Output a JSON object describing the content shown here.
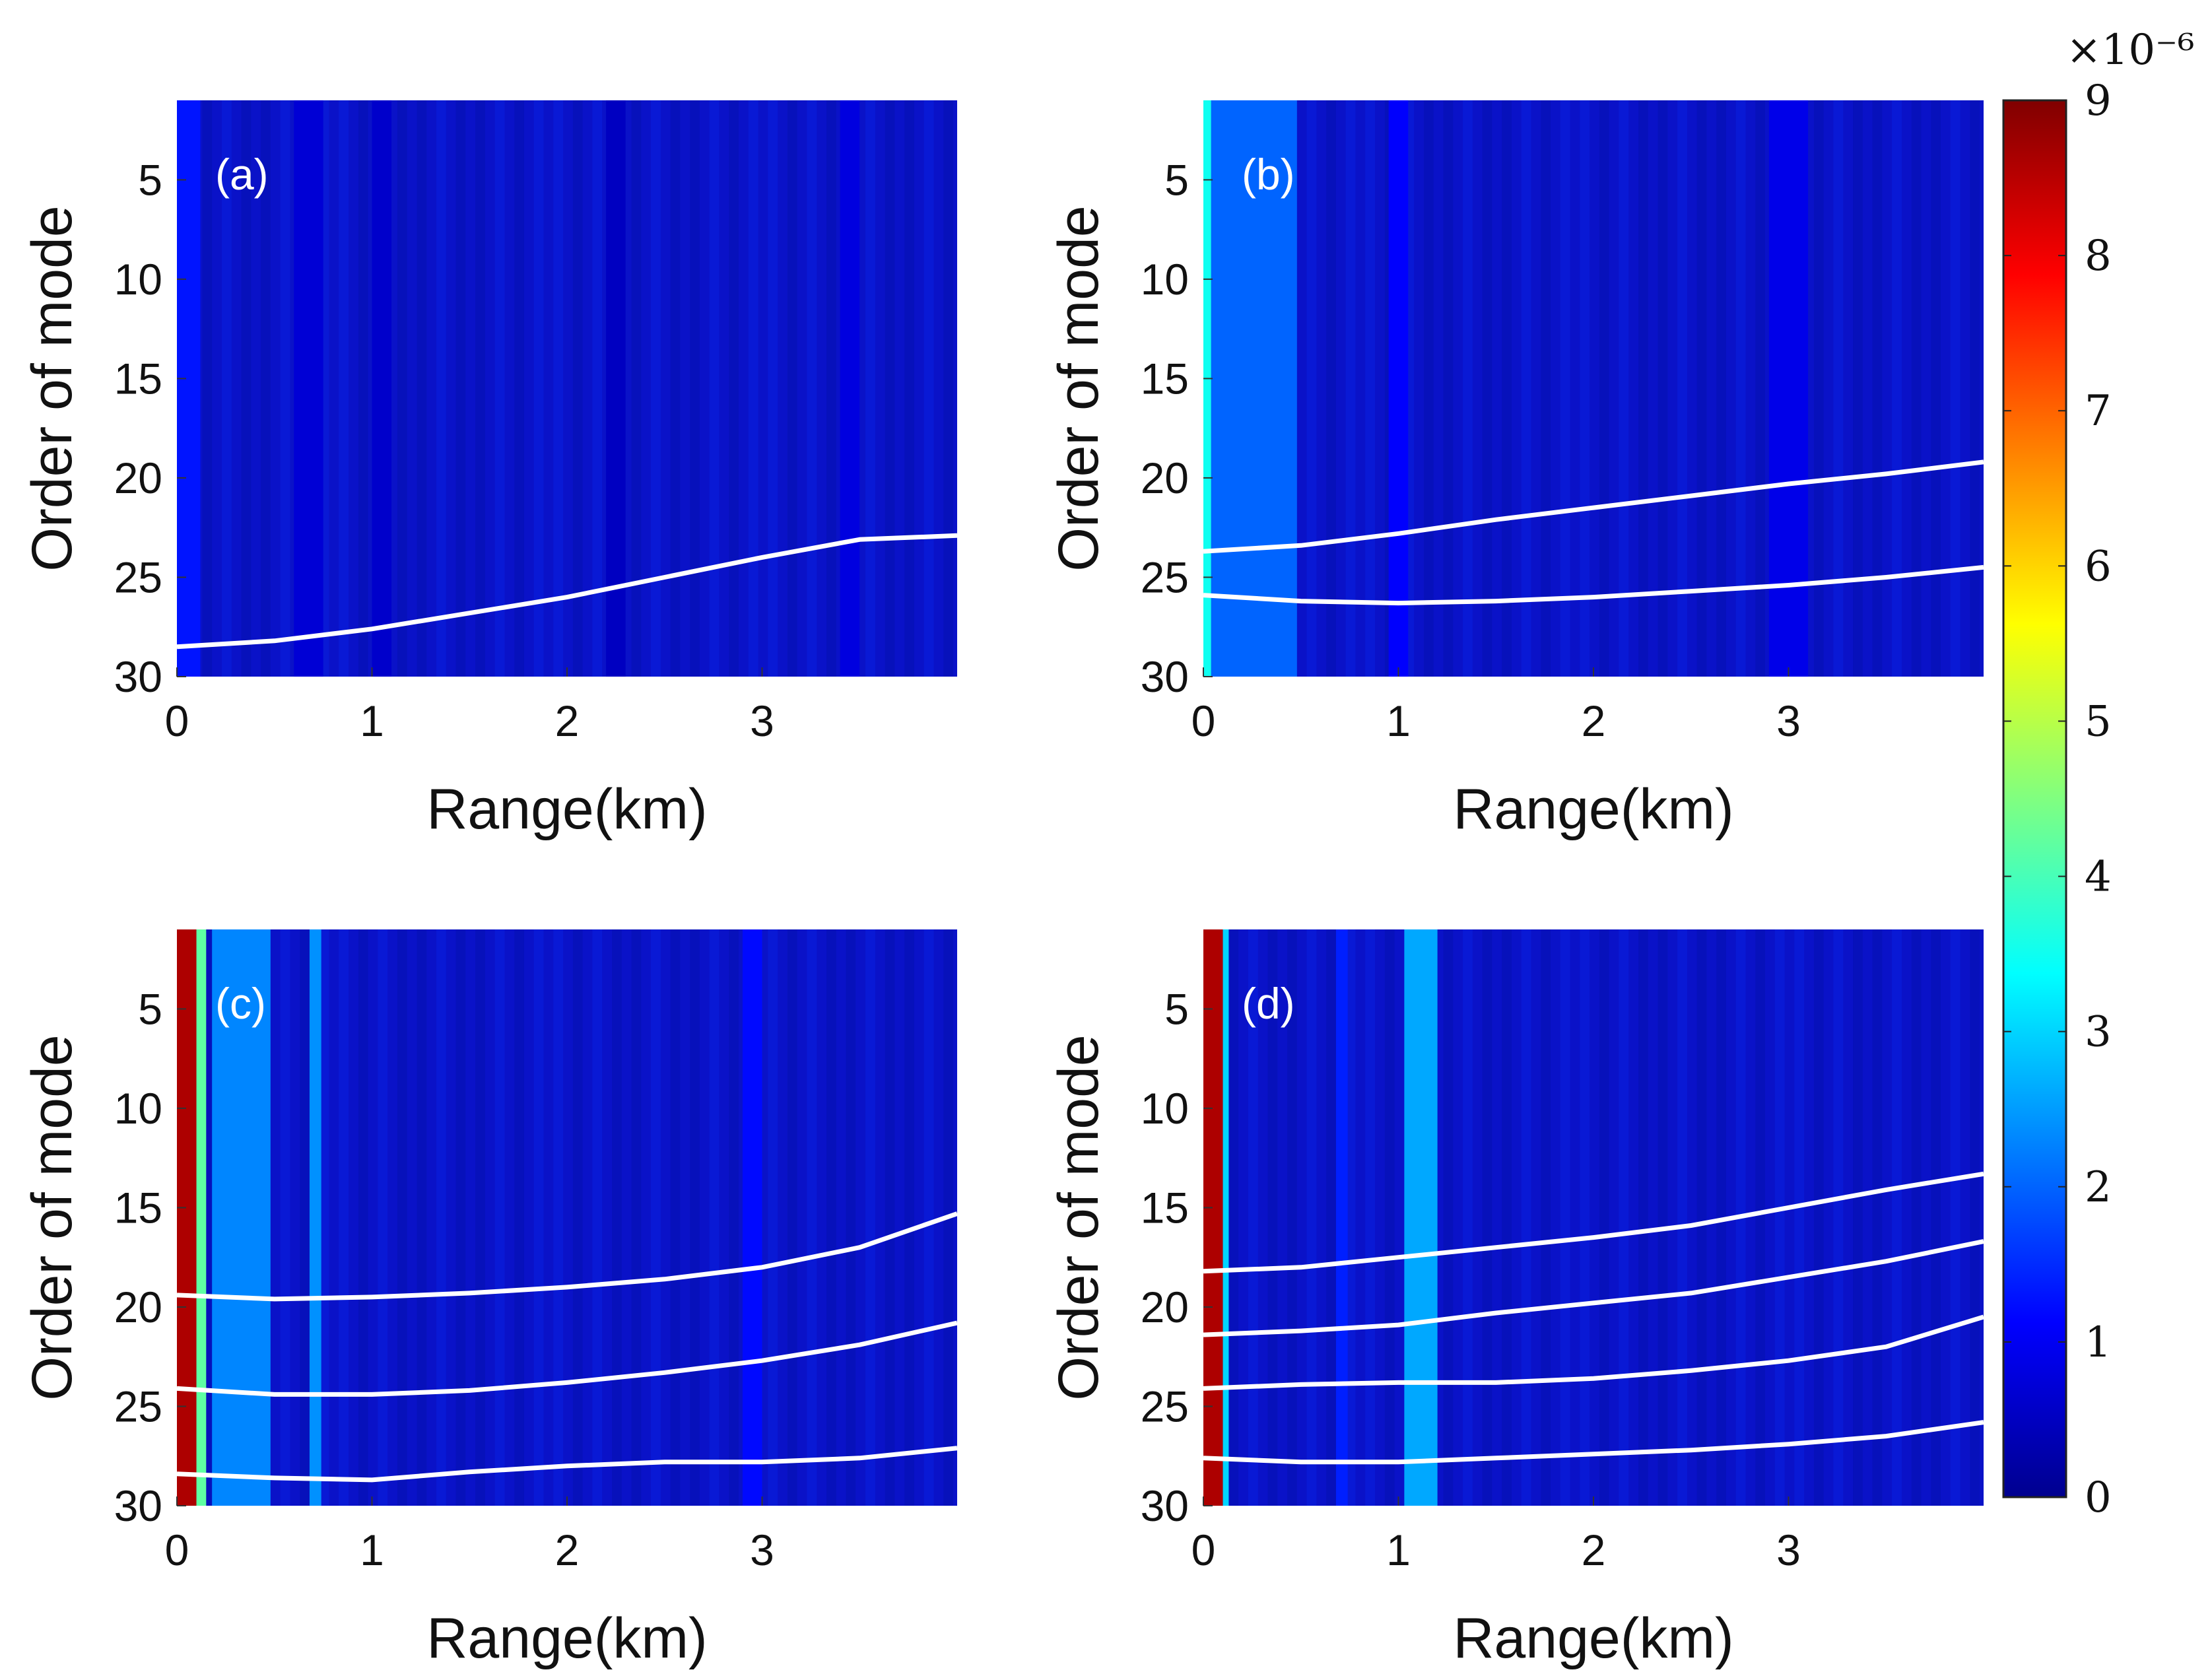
{
  "chart_data": {
    "type": "heatmap",
    "shared": {
      "xlabel": "Range(km)",
      "ylabel": "Order of mode",
      "xlim": [
        0,
        4
      ],
      "ylim": [
        1,
        30
      ],
      "xticks": [
        "0",
        "1",
        "2",
        "3"
      ],
      "yticks": [
        "5",
        "10",
        "15",
        "20",
        "25",
        "30"
      ],
      "line_color": "#ffffff"
    },
    "colorbar": {
      "min": 0,
      "max": 9,
      "ticks": [
        "0",
        "1",
        "2",
        "3",
        "4",
        "5",
        "6",
        "7",
        "8",
        "9"
      ],
      "exponent": "×10⁻⁶",
      "colormap": "jet",
      "stops": [
        "#00008f",
        "#0000ff",
        "#0080ff",
        "#00ffff",
        "#80ff80",
        "#ffff00",
        "#ff8000",
        "#ff0000",
        "#800000"
      ]
    },
    "panels": [
      {
        "label": "(a)",
        "bands": [
          {
            "x0": 0.0,
            "x1": 0.12,
            "v": 1.3
          },
          {
            "x0": 0.6,
            "x1": 0.75,
            "v": 0.7
          },
          {
            "x0": 1.0,
            "x1": 1.1,
            "v": 0.6
          },
          {
            "x0": 2.2,
            "x1": 2.3,
            "v": 0.5
          },
          {
            "x0": 3.4,
            "x1": 3.5,
            "v": 0.8
          }
        ],
        "curves": [
          {
            "x": [
              0,
              0.5,
              1,
              1.5,
              2,
              2.5,
              3,
              3.5,
              4
            ],
            "y": [
              28.5,
              28.2,
              27.6,
              26.8,
              26.0,
              25.0,
              24.0,
              23.1,
              22.9
            ]
          }
        ]
      },
      {
        "label": "(b)",
        "bands": [
          {
            "x0": 0.0,
            "x1": 0.04,
            "v": 3.5
          },
          {
            "x0": 0.04,
            "x1": 0.48,
            "v": 2.0
          },
          {
            "x0": 0.95,
            "x1": 1.05,
            "v": 1.1
          },
          {
            "x0": 2.9,
            "x1": 3.1,
            "v": 0.9
          }
        ],
        "curves": [
          {
            "x": [
              0,
              0.5,
              1,
              1.5,
              2,
              2.5,
              3,
              3.5,
              4
            ],
            "y": [
              23.7,
              23.4,
              22.8,
              22.1,
              21.5,
              20.9,
              20.3,
              19.8,
              19.2
            ]
          },
          {
            "x": [
              0,
              0.5,
              1,
              1.5,
              2,
              2.5,
              3,
              3.5,
              4
            ],
            "y": [
              25.9,
              26.2,
              26.3,
              26.2,
              26.0,
              25.7,
              25.4,
              25.0,
              24.5
            ]
          }
        ]
      },
      {
        "label": "(c)",
        "bands": [
          {
            "x0": 0.0,
            "x1": 0.1,
            "v": 8.6
          },
          {
            "x0": 0.1,
            "x1": 0.15,
            "v": 4.2
          },
          {
            "x0": 0.18,
            "x1": 0.48,
            "v": 2.3
          },
          {
            "x0": 0.68,
            "x1": 0.74,
            "v": 2.4
          },
          {
            "x0": 2.9,
            "x1": 3.0,
            "v": 1.2
          }
        ],
        "curves": [
          {
            "x": [
              0,
              0.5,
              1,
              1.5,
              2,
              2.5,
              3,
              3.5,
              4
            ],
            "y": [
              19.4,
              19.6,
              19.5,
              19.3,
              19.0,
              18.6,
              18.0,
              17.0,
              15.3
            ]
          },
          {
            "x": [
              0,
              0.5,
              1,
              1.5,
              2,
              2.5,
              3,
              3.5,
              4
            ],
            "y": [
              24.1,
              24.4,
              24.4,
              24.2,
              23.8,
              23.3,
              22.7,
              21.9,
              20.8
            ]
          },
          {
            "x": [
              0,
              0.5,
              1,
              1.5,
              2,
              2.5,
              3,
              3.5,
              4
            ],
            "y": [
              28.4,
              28.6,
              28.7,
              28.3,
              28.0,
              27.8,
              27.8,
              27.6,
              27.1
            ]
          }
        ]
      },
      {
        "label": "(d)",
        "bands": [
          {
            "x0": 0.0,
            "x1": 0.1,
            "v": 8.6
          },
          {
            "x0": 0.1,
            "x1": 0.13,
            "v": 3.0
          },
          {
            "x0": 1.03,
            "x1": 1.2,
            "v": 2.6
          },
          {
            "x0": 0.68,
            "x1": 0.74,
            "v": 1.4
          }
        ],
        "curves": [
          {
            "x": [
              0,
              0.5,
              1,
              1.5,
              2,
              2.5,
              3,
              3.5,
              4
            ],
            "y": [
              18.2,
              18.0,
              17.5,
              17.0,
              16.5,
              15.9,
              15.0,
              14.1,
              13.3
            ]
          },
          {
            "x": [
              0,
              0.5,
              1,
              1.5,
              2,
              2.5,
              3,
              3.5,
              4
            ],
            "y": [
              21.4,
              21.2,
              20.9,
              20.3,
              19.8,
              19.3,
              18.5,
              17.7,
              16.7
            ]
          },
          {
            "x": [
              0,
              0.5,
              1,
              1.5,
              2,
              2.5,
              3,
              3.5,
              4
            ],
            "y": [
              24.1,
              23.9,
              23.8,
              23.8,
              23.6,
              23.2,
              22.7,
              22.0,
              20.5
            ]
          },
          {
            "x": [
              0,
              0.5,
              1,
              1.5,
              2,
              2.5,
              3,
              3.5,
              4
            ],
            "y": [
              27.6,
              27.8,
              27.8,
              27.6,
              27.4,
              27.2,
              26.9,
              26.5,
              25.8
            ]
          }
        ]
      }
    ]
  }
}
